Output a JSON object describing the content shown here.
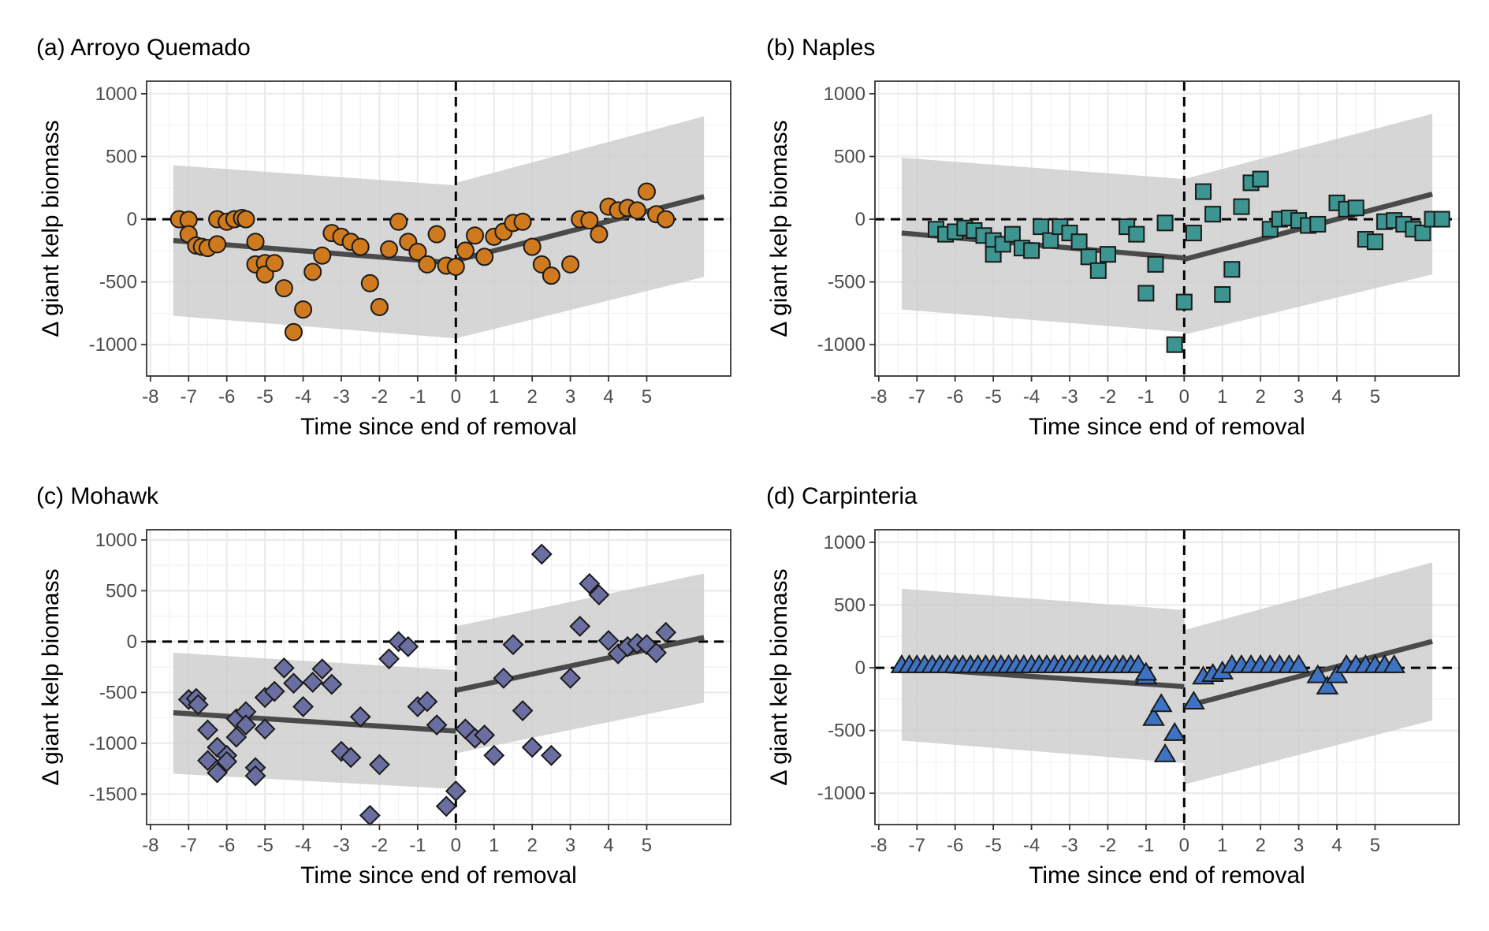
{
  "figure": {
    "x_axis_label": "Time since end of removal",
    "y_axis_label": "Δ giant kelp biomass"
  },
  "chart_data": [
    {
      "type": "scatter",
      "title": "(a) Arroyo Quemado",
      "xlabel": "Time since end of removal",
      "ylabel": "Δ giant kelp biomass",
      "xlim": [
        -8.1,
        7.2
      ],
      "ylim": [
        -1250,
        1100
      ],
      "xticks": [
        -8,
        -7,
        -6,
        -5,
        -4,
        -3,
        -2,
        -1,
        0,
        1,
        2,
        3,
        4,
        5
      ],
      "yticks": [
        -1000,
        -500,
        0,
        500,
        1000
      ],
      "marker": "circle",
      "color": "#d07a1f",
      "grid": true,
      "reference_lines": {
        "x": 0,
        "y": 0
      },
      "fit_before": {
        "x": [
          -7.4,
          0
        ],
        "y": [
          -170,
          -350
        ]
      },
      "fit_after": {
        "x": [
          0,
          6.5
        ],
        "y": [
          -330,
          180
        ]
      },
      "band_before": {
        "x": [
          -7.4,
          0
        ],
        "lower": [
          -770,
          -950
        ],
        "upper": [
          430,
          270
        ]
      },
      "band_after": {
        "x": [
          0,
          6.5
        ],
        "lower": [
          -950,
          -460
        ],
        "upper": [
          290,
          820
        ]
      },
      "points": [
        [
          -7.25,
          0
        ],
        [
          -7.0,
          -5
        ],
        [
          -7.0,
          -120
        ],
        [
          -6.8,
          -210
        ],
        [
          -6.65,
          -220
        ],
        [
          -6.5,
          -230
        ],
        [
          -6.25,
          -200
        ],
        [
          -6.25,
          0
        ],
        [
          -6.0,
          -20
        ],
        [
          -5.8,
          0
        ],
        [
          -5.6,
          10
        ],
        [
          -5.5,
          0
        ],
        [
          -5.25,
          -180
        ],
        [
          -5.25,
          -360
        ],
        [
          -5.0,
          -350
        ],
        [
          -5.0,
          -440
        ],
        [
          -4.75,
          -350
        ],
        [
          -4.5,
          -550
        ],
        [
          -4.25,
          -900
        ],
        [
          -4.0,
          -720
        ],
        [
          -3.75,
          -420
        ],
        [
          -3.5,
          -290
        ],
        [
          -3.25,
          -110
        ],
        [
          -3.0,
          -140
        ],
        [
          -2.75,
          -180
        ],
        [
          -2.5,
          -220
        ],
        [
          -2.25,
          -510
        ],
        [
          -2.0,
          -700
        ],
        [
          -1.75,
          -240
        ],
        [
          -1.5,
          -20
        ],
        [
          -1.25,
          -180
        ],
        [
          -1.0,
          -260
        ],
        [
          -0.75,
          -360
        ],
        [
          -0.5,
          -120
        ],
        [
          -0.25,
          -370
        ],
        [
          0.0,
          -380
        ],
        [
          0.25,
          -250
        ],
        [
          0.5,
          -130
        ],
        [
          0.75,
          -300
        ],
        [
          1.0,
          -140
        ],
        [
          1.25,
          -100
        ],
        [
          1.5,
          -30
        ],
        [
          1.75,
          -20
        ],
        [
          2.0,
          -220
        ],
        [
          2.25,
          -360
        ],
        [
          2.5,
          -450
        ],
        [
          3.0,
          -360
        ],
        [
          3.25,
          0
        ],
        [
          3.5,
          -10
        ],
        [
          3.75,
          -120
        ],
        [
          4.0,
          100
        ],
        [
          4.25,
          70
        ],
        [
          4.5,
          90
        ],
        [
          4.75,
          70
        ],
        [
          5.0,
          220
        ],
        [
          5.25,
          40
        ],
        [
          5.5,
          0
        ]
      ]
    },
    {
      "type": "scatter",
      "title": "(b) Naples",
      "xlabel": "Time since end of removal",
      "ylabel": "Δ giant kelp biomass",
      "xlim": [
        -8.1,
        7.2
      ],
      "ylim": [
        -1250,
        1100
      ],
      "xticks": [
        -8,
        -7,
        -6,
        -5,
        -4,
        -3,
        -2,
        -1,
        0,
        1,
        2,
        3,
        4,
        5
      ],
      "yticks": [
        -1000,
        -500,
        0,
        500,
        1000
      ],
      "marker": "square",
      "color": "#3d9591",
      "grid": true,
      "reference_lines": {
        "x": 0,
        "y": 0
      },
      "fit_before": {
        "x": [
          -7.4,
          0
        ],
        "y": [
          -110,
          -310
        ]
      },
      "fit_after": {
        "x": [
          0,
          6.5
        ],
        "y": [
          -320,
          200
        ]
      },
      "band_before": {
        "x": [
          -7.4,
          0
        ],
        "lower": [
          -720,
          -900
        ],
        "upper": [
          490,
          320
        ]
      },
      "band_after": {
        "x": [
          0,
          6.5
        ],
        "lower": [
          -920,
          -440
        ],
        "upper": [
          320,
          840
        ]
      },
      "points": [
        [
          -6.5,
          -80
        ],
        [
          -6.25,
          -120
        ],
        [
          -6.0,
          -100
        ],
        [
          -5.75,
          -70
        ],
        [
          -5.5,
          -90
        ],
        [
          -5.25,
          -130
        ],
        [
          -5.0,
          -170
        ],
        [
          -5.0,
          -280
        ],
        [
          -4.75,
          -200
        ],
        [
          -4.5,
          -120
        ],
        [
          -4.25,
          -230
        ],
        [
          -4.0,
          -250
        ],
        [
          -3.75,
          -60
        ],
        [
          -3.5,
          -170
        ],
        [
          -3.25,
          -60
        ],
        [
          -3.0,
          -110
        ],
        [
          -2.75,
          -180
        ],
        [
          -2.5,
          -300
        ],
        [
          -2.25,
          -410
        ],
        [
          -2.0,
          -280
        ],
        [
          -1.5,
          -60
        ],
        [
          -1.25,
          -120
        ],
        [
          -1.0,
          -590
        ],
        [
          -0.75,
          -360
        ],
        [
          -0.5,
          -30
        ],
        [
          -0.25,
          -1000
        ],
        [
          0.0,
          -660
        ],
        [
          0.25,
          -110
        ],
        [
          0.5,
          220
        ],
        [
          0.75,
          40
        ],
        [
          1.0,
          -600
        ],
        [
          1.25,
          -400
        ],
        [
          1.5,
          100
        ],
        [
          1.75,
          290
        ],
        [
          2.0,
          320
        ],
        [
          2.25,
          -80
        ],
        [
          2.5,
          0
        ],
        [
          2.75,
          10
        ],
        [
          3.0,
          -10
        ],
        [
          3.25,
          -50
        ],
        [
          3.5,
          -40
        ],
        [
          4.0,
          130
        ],
        [
          4.25,
          80
        ],
        [
          4.5,
          90
        ],
        [
          4.75,
          -160
        ],
        [
          5.0,
          -180
        ],
        [
          5.25,
          -20
        ],
        [
          5.5,
          -10
        ],
        [
          5.75,
          -40
        ],
        [
          6.0,
          -80
        ],
        [
          6.25,
          -110
        ],
        [
          6.5,
          0
        ],
        [
          6.75,
          0
        ]
      ]
    },
    {
      "type": "scatter",
      "title": "(c) Mohawk",
      "xlabel": "Time since end of removal",
      "ylabel": "Δ giant kelp biomass",
      "xlim": [
        -8.1,
        7.2
      ],
      "ylim": [
        -1800,
        1100
      ],
      "xticks": [
        -8,
        -7,
        -6,
        -5,
        -4,
        -3,
        -2,
        -1,
        0,
        1,
        2,
        3,
        4,
        5
      ],
      "yticks": [
        -1500,
        -1000,
        -500,
        0,
        500,
        1000
      ],
      "marker": "diamond",
      "color": "#6b6ea0",
      "grid": true,
      "reference_lines": {
        "x": 0,
        "y": 0
      },
      "fit_before": {
        "x": [
          -7.4,
          0
        ],
        "y": [
          -700,
          -880
        ]
      },
      "fit_after": {
        "x": [
          0,
          6.5
        ],
        "y": [
          -480,
          40
        ]
      },
      "band_before": {
        "x": [
          -7.4,
          0
        ],
        "lower": [
          -1300,
          -1450
        ],
        "upper": [
          -110,
          -280
        ]
      },
      "band_after": {
        "x": [
          0,
          6.5
        ],
        "lower": [
          -1100,
          -600
        ],
        "upper": [
          150,
          670
        ]
      },
      "points": [
        [
          -7.0,
          -570
        ],
        [
          -6.8,
          -560
        ],
        [
          -6.75,
          -620
        ],
        [
          -6.5,
          -870
        ],
        [
          -6.5,
          -1170
        ],
        [
          -6.25,
          -1040
        ],
        [
          -6.25,
          -1290
        ],
        [
          -6.0,
          -1120
        ],
        [
          -6.0,
          -1180
        ],
        [
          -5.75,
          -940
        ],
        [
          -5.75,
          -760
        ],
        [
          -5.5,
          -690
        ],
        [
          -5.5,
          -820
        ],
        [
          -5.25,
          -1240
        ],
        [
          -5.25,
          -1320
        ],
        [
          -5.0,
          -550
        ],
        [
          -5.0,
          -860
        ],
        [
          -4.75,
          -490
        ],
        [
          -4.5,
          -260
        ],
        [
          -4.25,
          -410
        ],
        [
          -4.0,
          -640
        ],
        [
          -3.75,
          -400
        ],
        [
          -3.5,
          -270
        ],
        [
          -3.25,
          -420
        ],
        [
          -3.0,
          -1080
        ],
        [
          -2.75,
          -1140
        ],
        [
          -2.5,
          -740
        ],
        [
          -2.25,
          -1710
        ],
        [
          -2.0,
          -1210
        ],
        [
          -1.75,
          -170
        ],
        [
          -1.5,
          0
        ],
        [
          -1.25,
          -50
        ],
        [
          -1.0,
          -640
        ],
        [
          -0.75,
          -590
        ],
        [
          -0.5,
          -820
        ],
        [
          -0.25,
          -1620
        ],
        [
          0.0,
          -1470
        ],
        [
          0.25,
          -860
        ],
        [
          0.5,
          -950
        ],
        [
          0.75,
          -920
        ],
        [
          1.0,
          -1120
        ],
        [
          1.25,
          -360
        ],
        [
          1.5,
          -30
        ],
        [
          1.75,
          -680
        ],
        [
          2.0,
          -1040
        ],
        [
          2.25,
          860
        ],
        [
          2.5,
          -1120
        ],
        [
          3.0,
          -360
        ],
        [
          3.25,
          150
        ],
        [
          3.5,
          570
        ],
        [
          3.75,
          460
        ],
        [
          4.0,
          10
        ],
        [
          4.25,
          -120
        ],
        [
          4.5,
          -50
        ],
        [
          4.75,
          -20
        ],
        [
          5.0,
          -30
        ],
        [
          5.25,
          -110
        ],
        [
          5.5,
          90
        ]
      ]
    },
    {
      "type": "scatter",
      "title": "(d) Carpinteria",
      "xlabel": "Time since end of removal",
      "ylabel": "Δ giant kelp biomass",
      "xlim": [
        -8.1,
        7.2
      ],
      "ylim": [
        -1250,
        1100
      ],
      "xticks": [
        -8,
        -7,
        -6,
        -5,
        -4,
        -3,
        -2,
        -1,
        0,
        1,
        2,
        3,
        4,
        5
      ],
      "yticks": [
        -1000,
        -500,
        0,
        500,
        1000
      ],
      "marker": "triangle",
      "color": "#3e73c4",
      "grid": true,
      "reference_lines": {
        "x": 0,
        "y": 0
      },
      "fit_before": {
        "x": [
          -7.4,
          0
        ],
        "y": [
          0,
          -150
        ]
      },
      "fit_after": {
        "x": [
          0,
          6.5
        ],
        "y": [
          -310,
          210
        ]
      },
      "band_before": {
        "x": [
          -7.4,
          0
        ],
        "lower": [
          -580,
          -760
        ],
        "upper": [
          630,
          460
        ]
      },
      "band_after": {
        "x": [
          0,
          6.5
        ],
        "lower": [
          -930,
          -420
        ],
        "upper": [
          300,
          840
        ]
      },
      "points": [
        [
          -7.4,
          20
        ],
        [
          -7.2,
          20
        ],
        [
          -7.0,
          20
        ],
        [
          -6.8,
          20
        ],
        [
          -6.6,
          20
        ],
        [
          -6.4,
          20
        ],
        [
          -6.2,
          20
        ],
        [
          -6.0,
          20
        ],
        [
          -5.8,
          20
        ],
        [
          -5.6,
          20
        ],
        [
          -5.4,
          20
        ],
        [
          -5.2,
          20
        ],
        [
          -5.0,
          20
        ],
        [
          -4.8,
          20
        ],
        [
          -4.6,
          20
        ],
        [
          -4.4,
          20
        ],
        [
          -4.2,
          20
        ],
        [
          -4.0,
          20
        ],
        [
          -3.8,
          20
        ],
        [
          -3.6,
          20
        ],
        [
          -3.4,
          20
        ],
        [
          -3.2,
          20
        ],
        [
          -3.0,
          20
        ],
        [
          -2.8,
          20
        ],
        [
          -2.6,
          20
        ],
        [
          -2.4,
          20
        ],
        [
          -2.2,
          20
        ],
        [
          -2.0,
          20
        ],
        [
          -1.8,
          20
        ],
        [
          -1.6,
          20
        ],
        [
          -1.4,
          20
        ],
        [
          -1.2,
          20
        ],
        [
          -1.0,
          -70
        ],
        [
          -1.0,
          -40
        ],
        [
          -0.8,
          -400
        ],
        [
          -0.6,
          -290
        ],
        [
          -0.5,
          -690
        ],
        [
          -0.25,
          -520
        ],
        [
          0.25,
          -270
        ],
        [
          0.5,
          -70
        ],
        [
          0.75,
          -50
        ],
        [
          1.0,
          -30
        ],
        [
          1.25,
          20
        ],
        [
          1.5,
          20
        ],
        [
          1.75,
          20
        ],
        [
          2.0,
          20
        ],
        [
          2.25,
          20
        ],
        [
          2.5,
          20
        ],
        [
          2.75,
          20
        ],
        [
          3.0,
          20
        ],
        [
          3.5,
          -60
        ],
        [
          3.75,
          -150
        ],
        [
          4.0,
          -60
        ],
        [
          4.25,
          20
        ],
        [
          4.5,
          20
        ],
        [
          4.75,
          20
        ],
        [
          5.0,
          20
        ],
        [
          5.25,
          20
        ],
        [
          5.5,
          20
        ]
      ]
    }
  ]
}
